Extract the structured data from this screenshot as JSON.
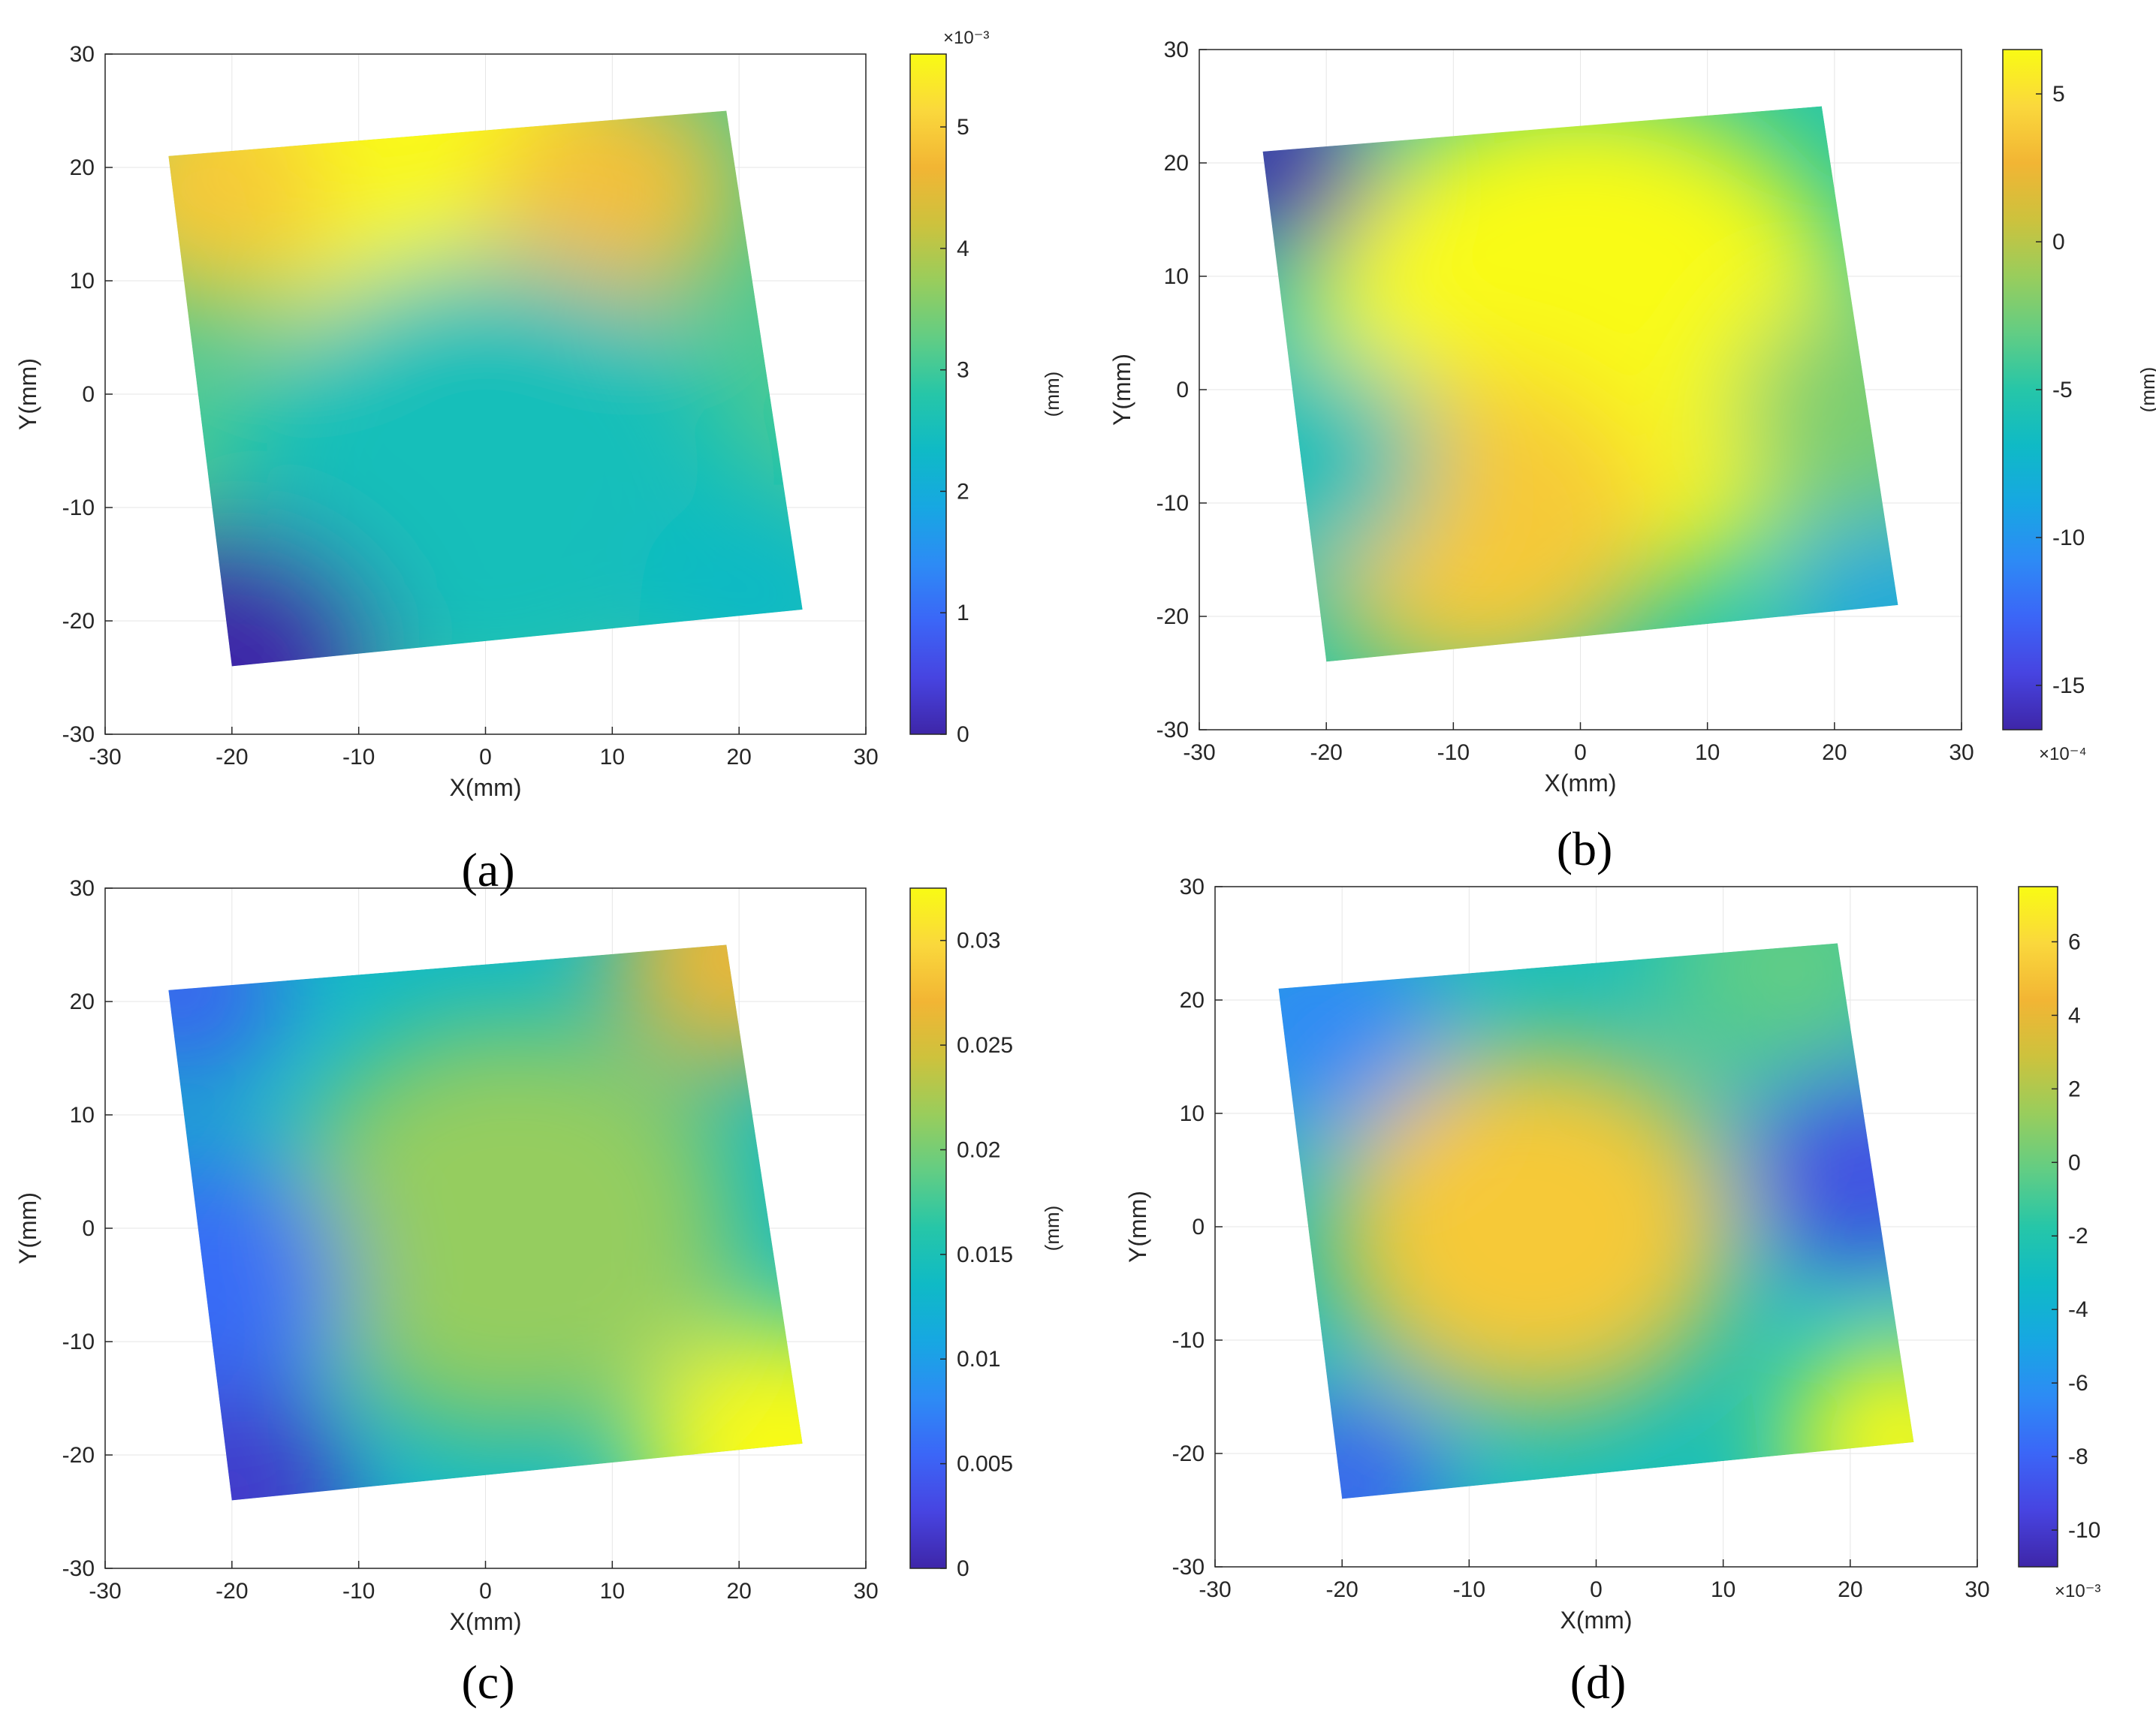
{
  "chart_data": [
    {
      "type": "heatmap",
      "panel_label": "(a)",
      "xlabel": "X(mm)",
      "ylabel": "Y(mm)",
      "xlim": [
        -30,
        30
      ],
      "ylim": [
        -30,
        30
      ],
      "xticks": [
        -30,
        -20,
        -10,
        0,
        10,
        20,
        30
      ],
      "yticks": [
        -30,
        -20,
        -10,
        0,
        10,
        20,
        30
      ],
      "grid": true,
      "sample_corners": [
        [
          -25,
          21
        ],
        [
          19,
          25
        ],
        [
          25,
          -19
        ],
        [
          -20,
          -24
        ]
      ],
      "colorbar": {
        "label": "(mm)",
        "exponent_label": "×10⁻³",
        "exponent_position": "top",
        "range": [
          0,
          5.6
        ],
        "ticks": [
          0,
          1,
          2,
          3,
          4,
          5
        ],
        "tick_labels": [
          "0",
          "1",
          "2",
          "3",
          "4",
          "5"
        ]
      },
      "field": {
        "description_values": "surface deviation, high along top edge, low at bottom-left corner",
        "peak": {
          "x": -8,
          "y": 22,
          "value": 5.5
        },
        "min": {
          "x": -20,
          "y": -24,
          "value": 0.2
        }
      }
    },
    {
      "type": "heatmap",
      "panel_label": "(b)",
      "xlabel": "X(mm)",
      "ylabel": "Y(mm)",
      "xlim": [
        -30,
        30
      ],
      "ylim": [
        -30,
        30
      ],
      "xticks": [
        -30,
        -20,
        -10,
        0,
        10,
        20,
        30
      ],
      "yticks": [
        -30,
        -20,
        -10,
        0,
        10,
        20,
        30
      ],
      "grid": true,
      "sample_corners": [
        [
          -25,
          21
        ],
        [
          19,
          25
        ],
        [
          25,
          -19
        ],
        [
          -20,
          -24
        ]
      ],
      "colorbar": {
        "label": "(mm)",
        "exponent_label": "×10⁻⁴",
        "exponent_position": "bottom",
        "range": [
          -16.5,
          6.5
        ],
        "ticks": [
          -15,
          -10,
          -5,
          0,
          5
        ],
        "tick_labels": [
          "-15",
          "-10",
          "-5",
          "0",
          "5"
        ]
      },
      "field": {
        "peak": {
          "x": 0,
          "y": 5,
          "value": 6
        },
        "min": {
          "x": -25,
          "y": 21,
          "value": -16
        }
      }
    },
    {
      "type": "heatmap",
      "panel_label": "(c)",
      "xlabel": "X(mm)",
      "ylabel": "Y(mm)",
      "xlim": [
        -30,
        30
      ],
      "ylim": [
        -30,
        30
      ],
      "xticks": [
        -30,
        -20,
        -10,
        0,
        10,
        20,
        30
      ],
      "yticks": [
        -30,
        -20,
        -10,
        0,
        10,
        20,
        30
      ],
      "grid": true,
      "sample_corners": [
        [
          -25,
          21
        ],
        [
          19,
          25
        ],
        [
          25,
          -19
        ],
        [
          -20,
          -24
        ]
      ],
      "colorbar": {
        "label": "(mm)",
        "exponent_label": "",
        "exponent_position": "none",
        "range": [
          0,
          0.0325
        ],
        "ticks": [
          0,
          0.005,
          0.01,
          0.015,
          0.02,
          0.025,
          0.03
        ],
        "tick_labels": [
          "0",
          "0.005",
          "0.01",
          "0.015",
          "0.02",
          "0.025",
          "0.03"
        ]
      },
      "field": {
        "peak": {
          "x": 24,
          "y": -19,
          "value": 0.032
        },
        "min": {
          "x": -22,
          "y": -24,
          "value": 0.002
        }
      }
    },
    {
      "type": "heatmap",
      "panel_label": "(d)",
      "xlabel": "X(mm)",
      "ylabel": "Y(mm)",
      "xlim": [
        -30,
        30
      ],
      "ylim": [
        -30,
        30
      ],
      "xticks": [
        -30,
        -20,
        -10,
        0,
        10,
        20,
        30
      ],
      "yticks": [
        -30,
        -20,
        -10,
        0,
        10,
        20,
        30
      ],
      "grid": true,
      "sample_corners": [
        [
          -25,
          21
        ],
        [
          19,
          25
        ],
        [
          25,
          -19
        ],
        [
          -20,
          -24
        ]
      ],
      "colorbar": {
        "label": "(mm)",
        "exponent_label": "×10⁻³",
        "exponent_position": "bottom",
        "range": [
          -11,
          7.5
        ],
        "ticks": [
          -10,
          -8,
          -6,
          -4,
          -2,
          0,
          2,
          4,
          6
        ],
        "tick_labels": [
          "-10",
          "-8",
          "-6",
          "-4",
          "-2",
          "0",
          "2",
          "4",
          "6"
        ]
      },
      "field": {
        "peak": {
          "x": -5,
          "y": 0,
          "value": 5
        },
        "min": {
          "x": 21,
          "y": 5,
          "value": -9
        }
      }
    }
  ],
  "colors": {
    "colormap": [
      "#3e26a8",
      "#4744e1",
      "#3b66f7",
      "#2d8bf5",
      "#17a7e2",
      "#0fbac6",
      "#26c6a8",
      "#62cd84",
      "#99cd5c",
      "#cdc23d",
      "#f2b534",
      "#fad83c",
      "#f9fb14"
    ],
    "axes": "#262626",
    "grid": "#e6e6e6"
  }
}
